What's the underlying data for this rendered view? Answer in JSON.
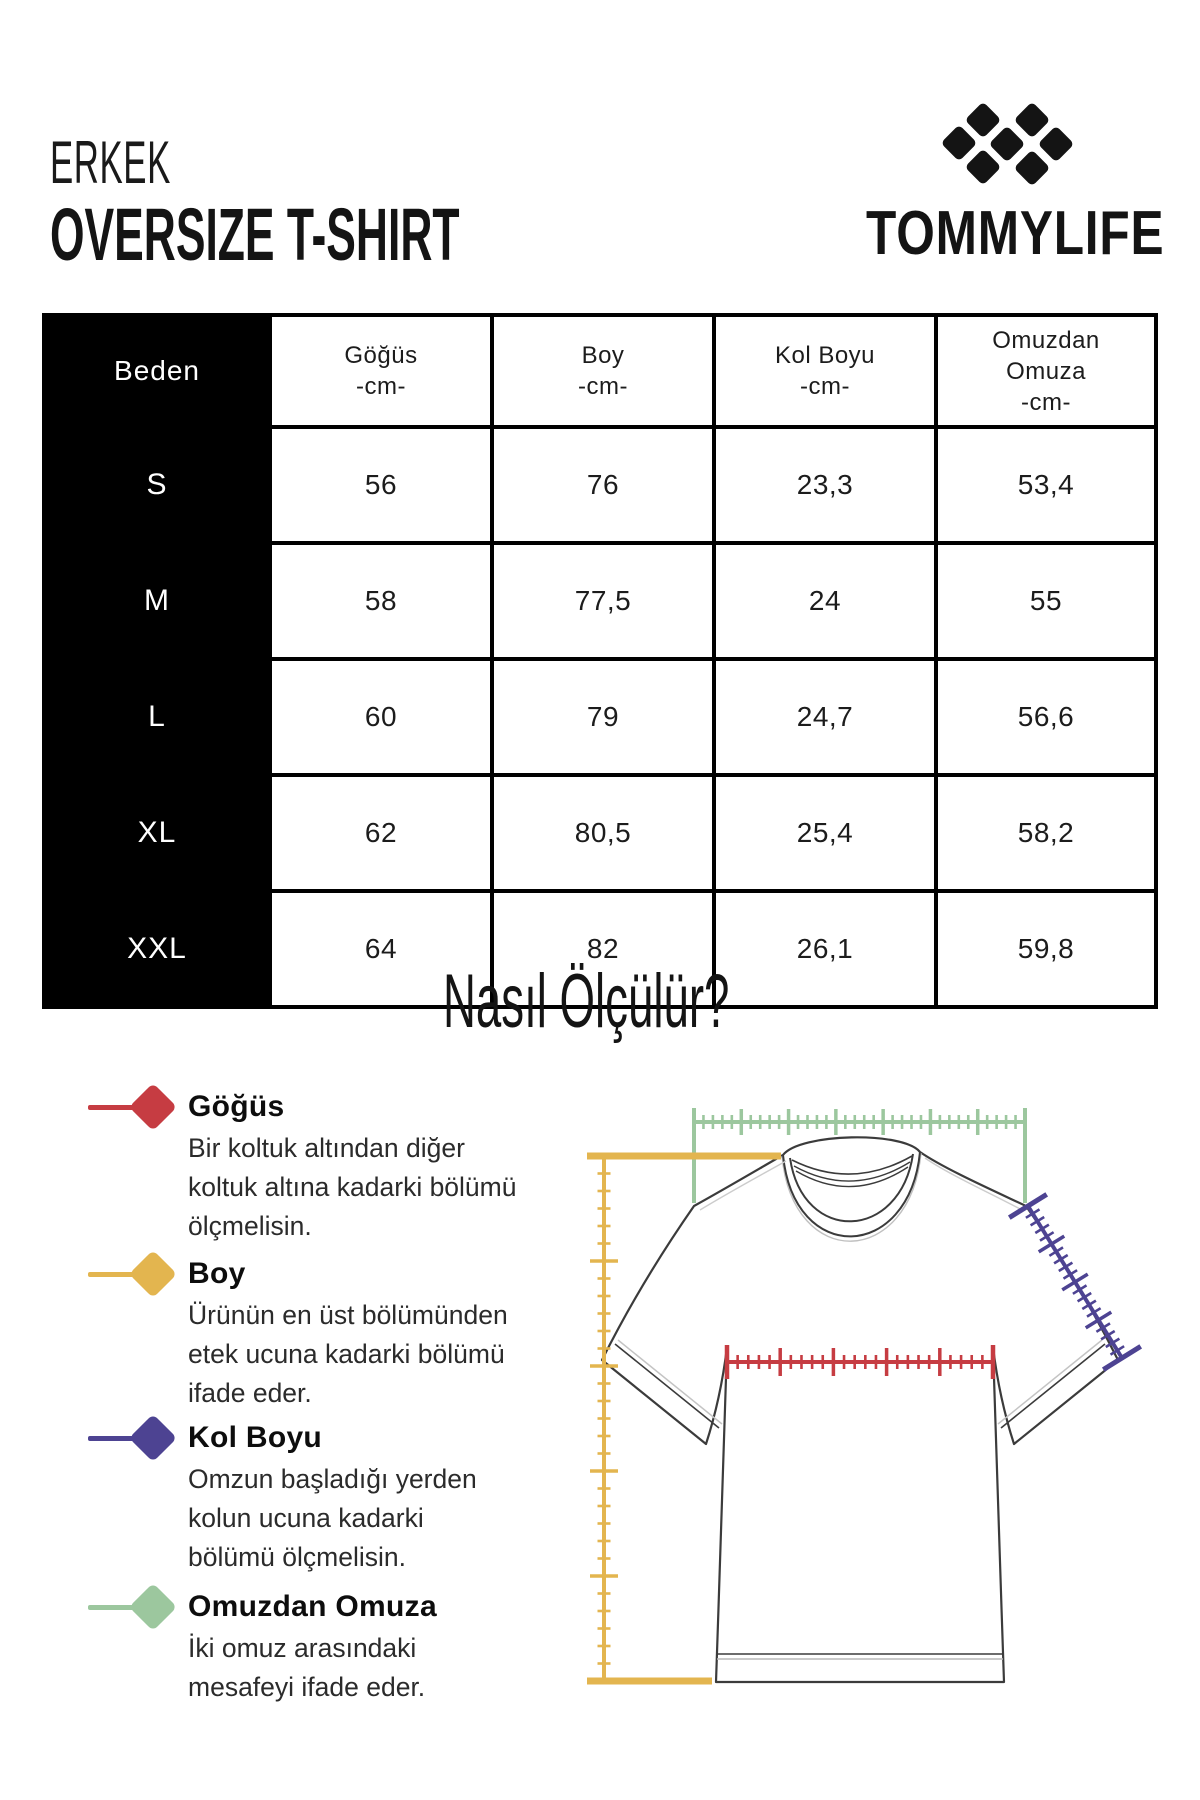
{
  "header": {
    "category": "ERKEK",
    "product": "OVERSIZE T-SHIRT",
    "brand": "TOMMYLIFE"
  },
  "size_table": {
    "corner_label": "Beden",
    "columns": [
      {
        "lines": [
          "Göğüs",
          "-cm-",
          ""
        ]
      },
      {
        "lines": [
          "Boy",
          "-cm-",
          ""
        ]
      },
      {
        "lines": [
          "Kol Boyu",
          "-cm-",
          ""
        ]
      },
      {
        "lines": [
          "Omuzdan",
          "Omuza",
          "-cm-"
        ]
      }
    ],
    "rows": [
      {
        "size": "S",
        "values": [
          "56",
          "76",
          "23,3",
          "53,4"
        ]
      },
      {
        "size": "M",
        "values": [
          "58",
          "77,5",
          "24",
          "55"
        ]
      },
      {
        "size": "L",
        "values": [
          "60",
          "79",
          "24,7",
          "56,6"
        ]
      },
      {
        "size": "XL",
        "values": [
          "62",
          "80,5",
          "25,4",
          "58,2"
        ]
      },
      {
        "size": "XXL",
        "values": [
          "64",
          "82",
          "26,1",
          "59,8"
        ]
      }
    ]
  },
  "how_to_measure": {
    "title": "Nasıl Ölçülür?",
    "legend": [
      {
        "name": "Göğüs",
        "color": "#C63C42",
        "lines": [
          "Bir koltuk altından diğer",
          "koltuk altına kadarki bölümü",
          "ölçmelisin."
        ]
      },
      {
        "name": "Boy",
        "color": "#E3B54F",
        "lines": [
          "Ürünün en üst bölümünden",
          "etek ucuna kadarki bölümü",
          "ifade eder."
        ]
      },
      {
        "name": "Kol Boyu",
        "color": "#4D4392",
        "lines": [
          "Omzun başladığı yerden",
          "kolun ucuna kadarki",
          "bölümü ölçmelisin."
        ]
      },
      {
        "name": "Omuzdan Omuza",
        "color": "#9CC79E",
        "lines": [
          "İki omuz arasındaki",
          "mesafeyi ifade eder.",
          ""
        ]
      }
    ]
  },
  "diagram": {
    "measure_colors": {
      "shoulder": "#9CC79E",
      "length": "#E3B54F",
      "chest": "#C63C42",
      "sleeve": "#4D4392"
    },
    "outline_color": "#3b3b3b"
  }
}
